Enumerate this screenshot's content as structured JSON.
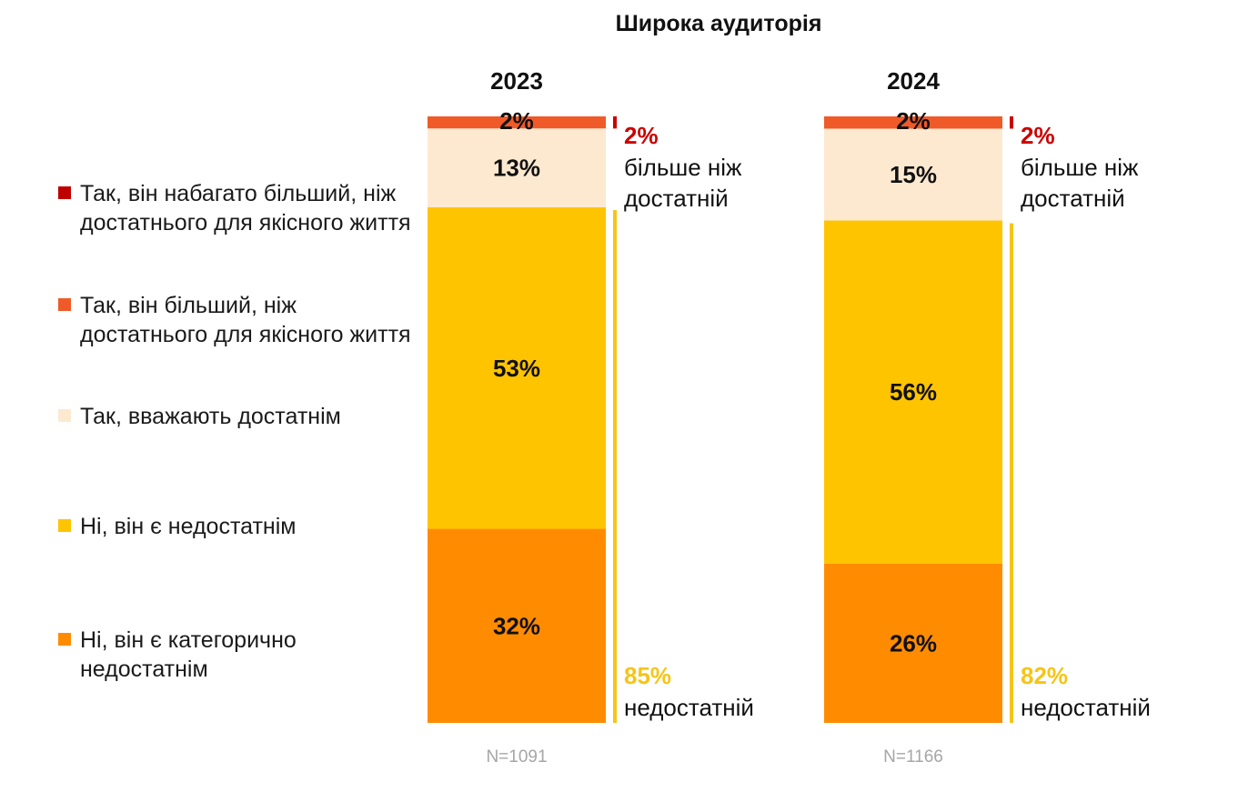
{
  "chart_data": {
    "type": "bar",
    "stacked": true,
    "title": "Широка аудиторія",
    "categories": [
      "2023",
      "2024"
    ],
    "series": [
      {
        "name": "Так, він набагато більший, ніж достатнього для якісного життя",
        "color": "#c00000",
        "values": [
          0,
          0
        ]
      },
      {
        "name": "Так, він більший, ніж достатнього для якісного життя",
        "color": "#f05a28",
        "values": [
          2,
          2
        ]
      },
      {
        "name": "Так, вважають достатнім",
        "color": "#fde9d0",
        "values": [
          13,
          15
        ]
      },
      {
        "name": "Ні, він є недостатнім",
        "color": "#ffc400",
        "values": [
          53,
          56
        ]
      },
      {
        "name": "Ні, він є категорично недостатнім",
        "color": "#ff8c00",
        "values": [
          32,
          26
        ]
      }
    ],
    "segment_labels": [
      [
        "2%",
        "13%",
        "53%",
        "32%"
      ],
      [
        "2%",
        "15%",
        "56%",
        "26%"
      ]
    ],
    "sample_sizes": [
      "N=1091",
      "N=1166"
    ],
    "summaries": [
      {
        "more_value": "2%",
        "more_label": "більше ніж достатній",
        "less_value": "85%",
        "less_label": "недостатній"
      },
      {
        "more_value": "2%",
        "more_label": "більше ніж достатній",
        "less_value": "82%",
        "less_label": "недостатній"
      }
    ],
    "colors": {
      "more_text": "#cc0000",
      "less_text": "#f5c518",
      "bracket_more": "#cc0000",
      "bracket_less": "#f5c518",
      "n_text": "#a6a6a6"
    },
    "ylim": [
      0,
      100
    ],
    "legend_position": "left"
  }
}
